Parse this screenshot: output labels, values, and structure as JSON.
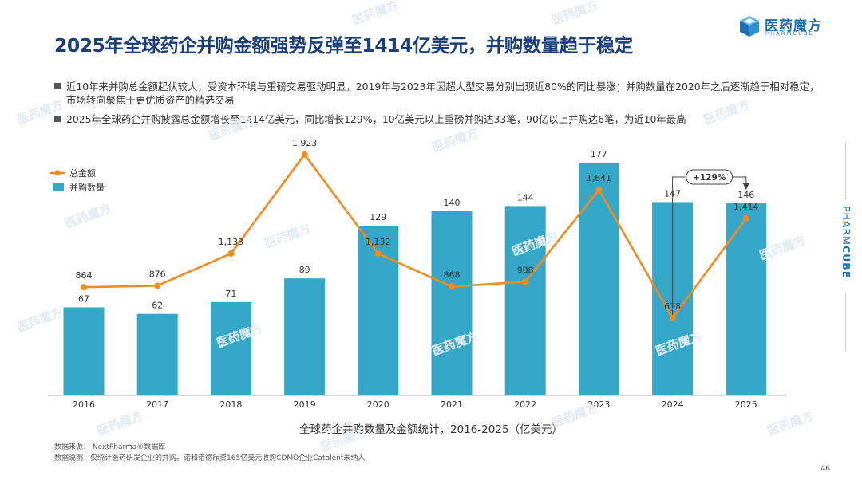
{
  "title": "2025年全球药企并购金额强势反弹至1414亿美元，并购数量趋于稳定",
  "logo": {
    "cn": "医药魔方",
    "en": "PHARMCUBE"
  },
  "side_brand": {
    "light": "PHARM",
    "bold": "CUBE"
  },
  "watermark": "医药魔方",
  "bullets": [
    "近10年来并购总金额起伏较大，受资本环境与重磅交易驱动明显，2019年与2023年因超大型交易分别出现近80%的同比暴涨；并购数量在2020年之后逐渐趋于相对稳定，市场转向聚焦于更优质资产的精选交易",
    "2025年全球药企并购披露总金额增长至1414亿美元，同比增长129%，10亿美元以上重磅并购达33笔，90亿以上并购达6笔，为近10年最高"
  ],
  "caption": "全球药企并购数量及金额统计，2016-2025（亿美元）",
  "footnotes": {
    "source": "数据来源： NextPharma®数据库",
    "note": "数据说明：仅统计医药研发企业的并购。诺和诺德斥资165亿美元收购CDMO企业Catalent未纳入"
  },
  "page_number": "46",
  "colors": {
    "title": "#1a3f7a",
    "bar": "#35a8c9",
    "line": "#f28a1d",
    "text": "#333333"
  },
  "chart_data": {
    "type": "bar",
    "categories": [
      "2016",
      "2017",
      "2018",
      "2019",
      "2020",
      "2021",
      "2022",
      "2023",
      "2024",
      "2025"
    ],
    "series": [
      {
        "name": "并购数量",
        "type": "bar",
        "axis": "left",
        "values": [
          67,
          62,
          71,
          89,
          129,
          140,
          144,
          177,
          147,
          146
        ],
        "labels": [
          "67",
          "62",
          "71",
          "89",
          "129",
          "140",
          "144",
          "177",
          "147",
          "146"
        ]
      },
      {
        "name": "总金额",
        "type": "line",
        "axis": "right",
        "values": [
          864,
          876,
          1133,
          1923,
          1132,
          868,
          908,
          1641,
          618,
          1414
        ],
        "labels": [
          "864",
          "876",
          "1,133",
          "1,923",
          "1,132",
          "868",
          "908",
          "1,641",
          "618",
          "1,414"
        ]
      }
    ],
    "legend": [
      {
        "name": "总金额",
        "kind": "line"
      },
      {
        "name": "并购数量",
        "kind": "bar"
      }
    ],
    "legend_position": "top-left",
    "annotation": {
      "text": "+129%",
      "from": "2024",
      "to": "2025"
    },
    "bar_ylim": [
      0,
      200
    ],
    "line_ylim": [
      0,
      2100
    ],
    "grid": false
  }
}
